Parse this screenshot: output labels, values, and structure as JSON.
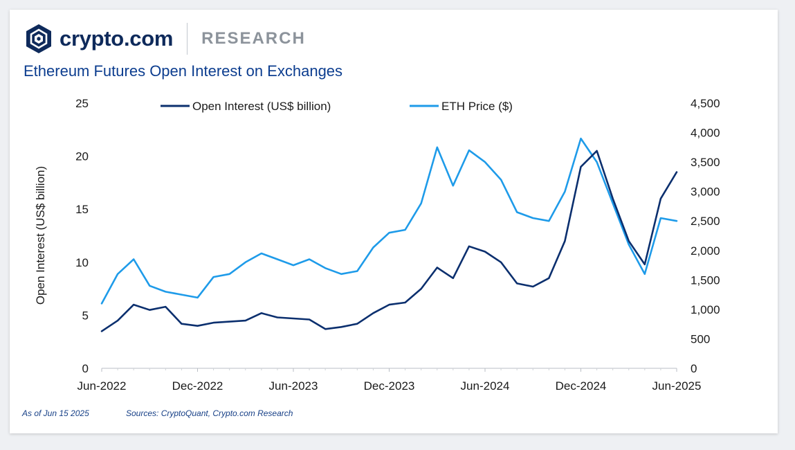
{
  "brand": {
    "name": "crypto.com",
    "section": "RESEARCH"
  },
  "footer": {
    "as_of": "As of Jun 15 2025",
    "sources": "Sources: CryptoQuant, Crypto.com Research"
  },
  "colors": {
    "open_interest": "#0b2f6e",
    "eth_price": "#1e9be9",
    "title": "#0c3d8f",
    "brand": "#0e2a5b"
  },
  "chart_data": {
    "type": "line",
    "title": "Ethereum Futures Open Interest on Exchanges",
    "ylabel": "Open Interest (US$ billion)",
    "y2label": "",
    "ylim": [
      0,
      25
    ],
    "y2lim": [
      0,
      4500
    ],
    "yticks": [
      0,
      5,
      10,
      15,
      20,
      25
    ],
    "y2ticks": [
      "0",
      "500",
      "1,000",
      "1,500",
      "2,000",
      "2,500",
      "3,000",
      "3,500",
      "4,000",
      "4,500"
    ],
    "xticks": [
      "Jun-2022",
      "Dec-2022",
      "Jun-2023",
      "Dec-2023",
      "Jun-2024",
      "Dec-2024",
      "Jun-2025"
    ],
    "grid": false,
    "legend": "top-center",
    "x": [
      "Jun-2022",
      "Jul-2022",
      "Aug-2022",
      "Sep-2022",
      "Oct-2022",
      "Nov-2022",
      "Dec-2022",
      "Jan-2023",
      "Feb-2023",
      "Mar-2023",
      "Apr-2023",
      "May-2023",
      "Jun-2023",
      "Jul-2023",
      "Aug-2023",
      "Sep-2023",
      "Oct-2023",
      "Nov-2023",
      "Dec-2023",
      "Jan-2024",
      "Feb-2024",
      "Mar-2024",
      "Apr-2024",
      "May-2024",
      "Jun-2024",
      "Jul-2024",
      "Aug-2024",
      "Sep-2024",
      "Oct-2024",
      "Nov-2024",
      "Dec-2024",
      "Jan-2025",
      "Feb-2025",
      "Mar-2025",
      "Apr-2025",
      "May-2025",
      "Jun-2025"
    ],
    "series": [
      {
        "name": "Open Interest (US$ billion)",
        "axis": "left",
        "values": [
          3.5,
          4.5,
          6.0,
          5.5,
          5.8,
          4.2,
          4.0,
          4.3,
          4.4,
          4.5,
          5.2,
          4.8,
          4.7,
          4.6,
          3.7,
          3.9,
          4.2,
          5.2,
          6.0,
          6.2,
          7.5,
          9.5,
          8.5,
          11.5,
          11.0,
          10.0,
          8.0,
          7.7,
          8.5,
          12.0,
          19.0,
          20.5,
          16.0,
          12.0,
          9.8,
          16.0,
          18.5
        ]
      },
      {
        "name": "ETH Price ($)",
        "axis": "right",
        "values": [
          1100,
          1600,
          1850,
          1400,
          1300,
          1250,
          1200,
          1550,
          1600,
          1800,
          1950,
          1850,
          1750,
          1850,
          1700,
          1600,
          1650,
          2050,
          2300,
          2350,
          2800,
          3750,
          3100,
          3700,
          3500,
          3200,
          2650,
          2550,
          2500,
          3000,
          3900,
          3500,
          2800,
          2100,
          1600,
          2550,
          2500
        ]
      }
    ]
  }
}
